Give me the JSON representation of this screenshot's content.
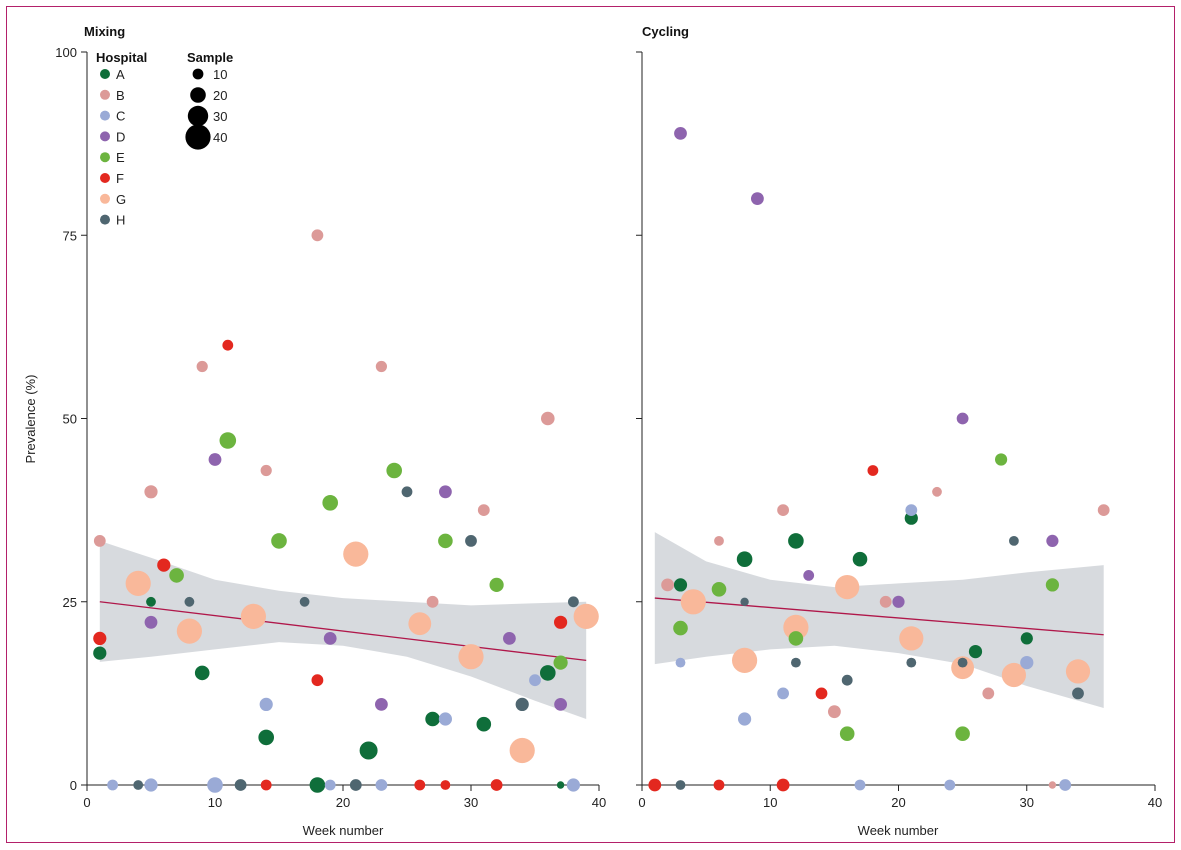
{
  "colors": {
    "frame": "#b3206a",
    "axis": "#222222",
    "band": "#d3d6da",
    "trend": "#b0174a",
    "hospitals": {
      "A": "#0f6e3a",
      "B": "#dc9a98",
      "C": "#9aaad6",
      "D": "#8e64ae",
      "E": "#6cb43f",
      "F": "#e3281f",
      "G": "#f9b89a",
      "H": "#4f6670"
    }
  },
  "legend": {
    "hospital_title": "Hospital",
    "sample_title": "Sample",
    "hospitals": [
      "A",
      "B",
      "C",
      "D",
      "E",
      "F",
      "G",
      "H"
    ],
    "sample_sizes": [
      "10",
      "20",
      "30",
      "40"
    ]
  },
  "chart_data": [
    {
      "type": "scatter",
      "title": "Mixing",
      "xlabel": "Week number",
      "ylabel": "Prevalence (%)",
      "xlim": [
        0,
        40
      ],
      "ylim": [
        0,
        100
      ],
      "xticks": [
        "0",
        "10",
        "20",
        "30",
        "40"
      ],
      "yticks": [
        "0",
        "25",
        "50",
        "75",
        "100"
      ],
      "trend": {
        "start": [
          1,
          25
        ],
        "end": [
          39,
          17
        ]
      },
      "band": {
        "upper": [
          [
            1,
            33.3
          ],
          [
            5,
            31
          ],
          [
            10,
            28
          ],
          [
            15,
            26.5
          ],
          [
            20,
            25.5
          ],
          [
            25,
            25
          ],
          [
            30,
            24.5
          ],
          [
            35,
            24.8
          ],
          [
            39,
            25
          ]
        ],
        "lower": [
          [
            1,
            16.8
          ],
          [
            5,
            17.5
          ],
          [
            10,
            18.5
          ],
          [
            15,
            19.5
          ],
          [
            20,
            19
          ],
          [
            25,
            17.5
          ],
          [
            30,
            14.8
          ],
          [
            35,
            11.5
          ],
          [
            39,
            9
          ]
        ]
      },
      "points": [
        {
          "h": "A",
          "x": 1,
          "y": 18,
          "n": 15
        },
        {
          "h": "A",
          "x": 5,
          "y": 25,
          "n": 8
        },
        {
          "h": "A",
          "x": 9,
          "y": 15.3,
          "n": 18
        },
        {
          "h": "A",
          "x": 14,
          "y": 6.5,
          "n": 20
        },
        {
          "h": "A",
          "x": 18,
          "y": 0,
          "n": 20
        },
        {
          "h": "A",
          "x": 22,
          "y": 4.7,
          "n": 25
        },
        {
          "h": "A",
          "x": 27,
          "y": 9,
          "n": 18
        },
        {
          "h": "A",
          "x": 31,
          "y": 8.3,
          "n": 18
        },
        {
          "h": "A",
          "x": 36,
          "y": 15.3,
          "n": 20
        },
        {
          "h": "A",
          "x": 37,
          "y": 0,
          "n": 3
        },
        {
          "h": "B",
          "x": 1,
          "y": 33.3,
          "n": 12
        },
        {
          "h": "B",
          "x": 5,
          "y": 40,
          "n": 15
        },
        {
          "h": "B",
          "x": 9,
          "y": 57.1,
          "n": 11
        },
        {
          "h": "B",
          "x": 14,
          "y": 42.9,
          "n": 11
        },
        {
          "h": "B",
          "x": 18,
          "y": 75,
          "n": 12
        },
        {
          "h": "B",
          "x": 23,
          "y": 57.1,
          "n": 11
        },
        {
          "h": "B",
          "x": 27,
          "y": 25,
          "n": 12
        },
        {
          "h": "B",
          "x": 31,
          "y": 37.5,
          "n": 12
        },
        {
          "h": "B",
          "x": 36,
          "y": 50,
          "n": 16
        },
        {
          "h": "C",
          "x": 2,
          "y": 0,
          "n": 10
        },
        {
          "h": "C",
          "x": 5,
          "y": 0,
          "n": 15
        },
        {
          "h": "C",
          "x": 10,
          "y": 0,
          "n": 20
        },
        {
          "h": "C",
          "x": 14,
          "y": 11,
          "n": 15
        },
        {
          "h": "C",
          "x": 19,
          "y": 0,
          "n": 10
        },
        {
          "h": "C",
          "x": 23,
          "y": 0,
          "n": 12
        },
        {
          "h": "C",
          "x": 28,
          "y": 9,
          "n": 15
        },
        {
          "h": "C",
          "x": 35,
          "y": 14.3,
          "n": 12
        },
        {
          "h": "C",
          "x": 38,
          "y": 0,
          "n": 15
        },
        {
          "h": "D",
          "x": 5,
          "y": 22.2,
          "n": 14
        },
        {
          "h": "D",
          "x": 10,
          "y": 44.4,
          "n": 14
        },
        {
          "h": "D",
          "x": 19,
          "y": 20,
          "n": 14
        },
        {
          "h": "D",
          "x": 23,
          "y": 11,
          "n": 14
        },
        {
          "h": "D",
          "x": 28,
          "y": 40,
          "n": 14
        },
        {
          "h": "D",
          "x": 33,
          "y": 20,
          "n": 14
        },
        {
          "h": "D",
          "x": 37,
          "y": 11,
          "n": 14
        },
        {
          "h": "E",
          "x": 7,
          "y": 28.6,
          "n": 18
        },
        {
          "h": "E",
          "x": 11,
          "y": 47,
          "n": 22
        },
        {
          "h": "E",
          "x": 15,
          "y": 33.3,
          "n": 20
        },
        {
          "h": "E",
          "x": 19,
          "y": 38.5,
          "n": 20
        },
        {
          "h": "E",
          "x": 24,
          "y": 42.9,
          "n": 20
        },
        {
          "h": "E",
          "x": 28,
          "y": 33.3,
          "n": 18
        },
        {
          "h": "E",
          "x": 32,
          "y": 27.3,
          "n": 17
        },
        {
          "h": "E",
          "x": 37,
          "y": 16.7,
          "n": 17
        },
        {
          "h": "F",
          "x": 1,
          "y": 20,
          "n": 15
        },
        {
          "h": "F",
          "x": 6,
          "y": 30,
          "n": 15
        },
        {
          "h": "F",
          "x": 11,
          "y": 60,
          "n": 10
        },
        {
          "h": "F",
          "x": 14,
          "y": 0,
          "n": 10
        },
        {
          "h": "F",
          "x": 18,
          "y": 14.3,
          "n": 12
        },
        {
          "h": "F",
          "x": 26,
          "y": 0,
          "n": 10
        },
        {
          "h": "F",
          "x": 28,
          "y": 0,
          "n": 8
        },
        {
          "h": "F",
          "x": 32,
          "y": 0,
          "n": 12
        },
        {
          "h": "F",
          "x": 37,
          "y": 22.2,
          "n": 15
        },
        {
          "h": "G",
          "x": 4,
          "y": 27.5,
          "n": 40
        },
        {
          "h": "G",
          "x": 8,
          "y": 21,
          "n": 40
        },
        {
          "h": "G",
          "x": 13,
          "y": 23,
          "n": 40
        },
        {
          "h": "G",
          "x": 21,
          "y": 31.5,
          "n": 40
        },
        {
          "h": "G",
          "x": 26,
          "y": 22,
          "n": 35
        },
        {
          "h": "G",
          "x": 30,
          "y": 17.5,
          "n": 40
        },
        {
          "h": "G",
          "x": 34,
          "y": 4.7,
          "n": 40
        },
        {
          "h": "G",
          "x": 39,
          "y": 23,
          "n": 40
        },
        {
          "h": "H",
          "x": 4,
          "y": 0,
          "n": 8
        },
        {
          "h": "H",
          "x": 8,
          "y": 25,
          "n": 8
        },
        {
          "h": "H",
          "x": 12,
          "y": 0,
          "n": 12
        },
        {
          "h": "H",
          "x": 17,
          "y": 25,
          "n": 8
        },
        {
          "h": "H",
          "x": 21,
          "y": 0,
          "n": 12
        },
        {
          "h": "H",
          "x": 25,
          "y": 40,
          "n": 10
        },
        {
          "h": "H",
          "x": 30,
          "y": 33.3,
          "n": 12
        },
        {
          "h": "H",
          "x": 34,
          "y": 11,
          "n": 15
        },
        {
          "h": "H",
          "x": 38,
          "y": 25,
          "n": 10
        }
      ]
    },
    {
      "type": "scatter",
      "title": "Cycling",
      "xlabel": "Week number",
      "ylabel": "",
      "xlim": [
        0,
        40
      ],
      "ylim": [
        0,
        100
      ],
      "xticks": [
        "0",
        "10",
        "20",
        "30",
        "40"
      ],
      "yticks": [],
      "trend": {
        "start": [
          1,
          25.5
        ],
        "end": [
          36,
          20.5
        ]
      },
      "band": {
        "upper": [
          [
            1,
            34.5
          ],
          [
            5,
            30.5
          ],
          [
            10,
            28
          ],
          [
            15,
            27
          ],
          [
            20,
            27.5
          ],
          [
            25,
            28
          ],
          [
            30,
            29
          ],
          [
            36,
            30
          ]
        ],
        "lower": [
          [
            1,
            16.5
          ],
          [
            5,
            17.5
          ],
          [
            10,
            18.5
          ],
          [
            15,
            19
          ],
          [
            20,
            18
          ],
          [
            25,
            16.5
          ],
          [
            30,
            13.5
          ],
          [
            36,
            10.5
          ]
        ]
      },
      "points": [
        {
          "h": "A",
          "x": 3,
          "y": 27.3,
          "n": 15
        },
        {
          "h": "A",
          "x": 8,
          "y": 30.8,
          "n": 20
        },
        {
          "h": "A",
          "x": 12,
          "y": 33.3,
          "n": 20
        },
        {
          "h": "A",
          "x": 17,
          "y": 30.8,
          "n": 18
        },
        {
          "h": "A",
          "x": 21,
          "y": 36.4,
          "n": 15
        },
        {
          "h": "A",
          "x": 26,
          "y": 18.2,
          "n": 15
        },
        {
          "h": "A",
          "x": 30,
          "y": 20,
          "n": 13
        },
        {
          "h": "B",
          "x": 2,
          "y": 27.3,
          "n": 14
        },
        {
          "h": "B",
          "x": 6,
          "y": 33.3,
          "n": 8
        },
        {
          "h": "B",
          "x": 11,
          "y": 37.5,
          "n": 12
        },
        {
          "h": "B",
          "x": 15,
          "y": 10,
          "n": 14
        },
        {
          "h": "B",
          "x": 19,
          "y": 25,
          "n": 12
        },
        {
          "h": "B",
          "x": 23,
          "y": 40,
          "n": 8
        },
        {
          "h": "B",
          "x": 27,
          "y": 12.5,
          "n": 12
        },
        {
          "h": "B",
          "x": 32,
          "y": 0,
          "n": 3
        },
        {
          "h": "B",
          "x": 36,
          "y": 37.5,
          "n": 12
        },
        {
          "h": "C",
          "x": 3,
          "y": 16.7,
          "n": 8
        },
        {
          "h": "C",
          "x": 8,
          "y": 9,
          "n": 15
        },
        {
          "h": "C",
          "x": 11,
          "y": 12.5,
          "n": 12
        },
        {
          "h": "C",
          "x": 17,
          "y": 0,
          "n": 10
        },
        {
          "h": "C",
          "x": 21,
          "y": 37.5,
          "n": 12
        },
        {
          "h": "C",
          "x": 24,
          "y": 0,
          "n": 10
        },
        {
          "h": "C",
          "x": 30,
          "y": 16.7,
          "n": 15
        },
        {
          "h": "C",
          "x": 33,
          "y": 0,
          "n": 12
        },
        {
          "h": "D",
          "x": 3,
          "y": 88.9,
          "n": 14
        },
        {
          "h": "D",
          "x": 9,
          "y": 80,
          "n": 14
        },
        {
          "h": "D",
          "x": 13,
          "y": 28.6,
          "n": 10
        },
        {
          "h": "D",
          "x": 20,
          "y": 25,
          "n": 13
        },
        {
          "h": "D",
          "x": 25,
          "y": 50,
          "n": 12
        },
        {
          "h": "D",
          "x": 32,
          "y": 33.3,
          "n": 13
        },
        {
          "h": "E",
          "x": 3,
          "y": 21.4,
          "n": 18
        },
        {
          "h": "E",
          "x": 6,
          "y": 26.7,
          "n": 18
        },
        {
          "h": "E",
          "x": 12,
          "y": 20,
          "n": 18
        },
        {
          "h": "E",
          "x": 16,
          "y": 7,
          "n": 18
        },
        {
          "h": "E",
          "x": 25,
          "y": 7,
          "n": 18
        },
        {
          "h": "E",
          "x": 28,
          "y": 44.4,
          "n": 13
        },
        {
          "h": "E",
          "x": 32,
          "y": 27.3,
          "n": 15
        },
        {
          "h": "F",
          "x": 1,
          "y": 0,
          "n": 14
        },
        {
          "h": "F",
          "x": 6,
          "y": 0,
          "n": 10
        },
        {
          "h": "F",
          "x": 11,
          "y": 0,
          "n": 14
        },
        {
          "h": "F",
          "x": 14,
          "y": 12.5,
          "n": 12
        },
        {
          "h": "F",
          "x": 18,
          "y": 42.9,
          "n": 10
        },
        {
          "h": "G",
          "x": 4,
          "y": 25,
          "n": 40
        },
        {
          "h": "G",
          "x": 8,
          "y": 17,
          "n": 40
        },
        {
          "h": "G",
          "x": 12,
          "y": 21.5,
          "n": 40
        },
        {
          "h": "G",
          "x": 16,
          "y": 27,
          "n": 38
        },
        {
          "h": "G",
          "x": 21,
          "y": 20,
          "n": 38
        },
        {
          "h": "G",
          "x": 25,
          "y": 16,
          "n": 35
        },
        {
          "h": "G",
          "x": 29,
          "y": 15,
          "n": 38
        },
        {
          "h": "G",
          "x": 34,
          "y": 15.5,
          "n": 38
        },
        {
          "h": "H",
          "x": 3,
          "y": 0,
          "n": 8
        },
        {
          "h": "H",
          "x": 8,
          "y": 25,
          "n": 5
        },
        {
          "h": "H",
          "x": 12,
          "y": 16.7,
          "n": 8
        },
        {
          "h": "H",
          "x": 16,
          "y": 14.3,
          "n": 10
        },
        {
          "h": "H",
          "x": 21,
          "y": 16.7,
          "n": 8
        },
        {
          "h": "H",
          "x": 25,
          "y": 16.7,
          "n": 8
        },
        {
          "h": "H",
          "x": 29,
          "y": 33.3,
          "n": 8
        },
        {
          "h": "H",
          "x": 34,
          "y": 12.5,
          "n": 12
        }
      ]
    }
  ]
}
